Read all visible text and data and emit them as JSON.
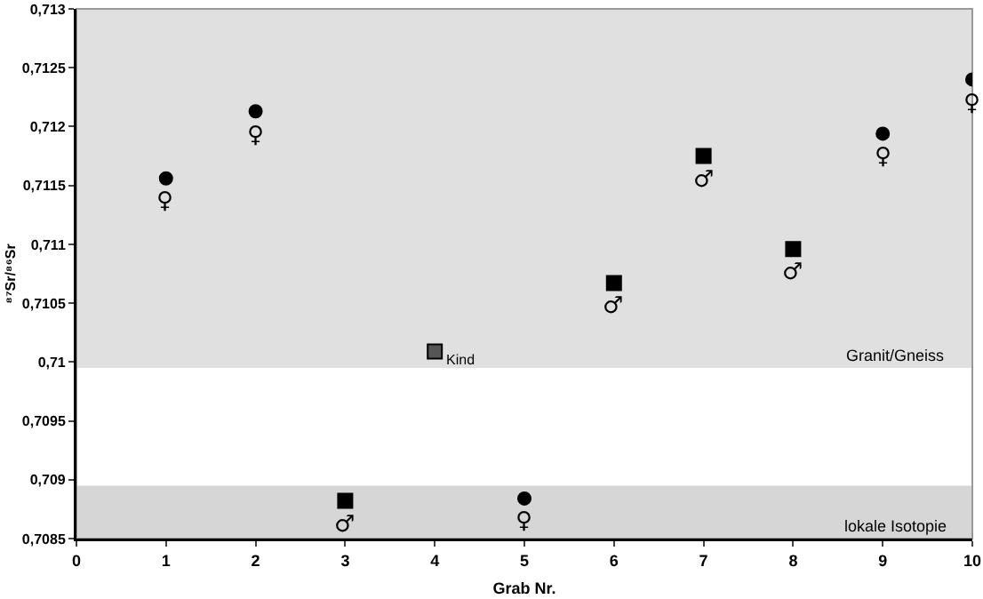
{
  "chart_data": {
    "type": "scatter",
    "xlabel": "Grab Nr.",
    "ylabel": "⁸⁷Sr/⁸⁶Sr",
    "xlim": [
      0,
      10
    ],
    "xticks": [
      0,
      1,
      2,
      3,
      4,
      5,
      6,
      7,
      8,
      9,
      10
    ],
    "ylim": [
      0.7085,
      0.713
    ],
    "yticks": [
      {
        "value": 0.7085,
        "label": "0,7085"
      },
      {
        "value": 0.709,
        "label": "0,709"
      },
      {
        "value": 0.7095,
        "label": "0,7095"
      },
      {
        "value": 0.71,
        "label": "0,71"
      },
      {
        "value": 0.7105,
        "label": "0,7105"
      },
      {
        "value": 0.711,
        "label": "0,711"
      },
      {
        "value": 0.7115,
        "label": "0,7115"
      },
      {
        "value": 0.712,
        "label": "0,712"
      },
      {
        "value": 0.7125,
        "label": "0,7125"
      },
      {
        "value": 0.713,
        "label": "0,713"
      }
    ],
    "grid": false,
    "series": [
      {
        "marker": "circle",
        "color": "#000000",
        "x": [
          1,
          2,
          5,
          9,
          10
        ],
        "values": [
          0.71156,
          0.71213,
          0.70884,
          0.71194,
          0.7124
        ]
      },
      {
        "marker": "square",
        "color": "#000000",
        "colors": [
          "#000000",
          "#555555",
          "#000000",
          "#000000",
          "#000000"
        ],
        "x": [
          3,
          4,
          6,
          7,
          8
        ],
        "values": [
          0.70882,
          0.71009,
          0.71067,
          0.71175,
          0.71096
        ]
      }
    ],
    "bands": [
      {
        "axis": "y",
        "from": 0.70995,
        "to": 0.713,
        "label": "Granit/Gneiss",
        "color": "#e0e0e0"
      },
      {
        "axis": "y",
        "from": 0.7085,
        "to": 0.70895,
        "label": "lokale Isotopie",
        "color": "#d6d6d6"
      }
    ],
    "annotations": [
      {
        "text": "♀",
        "x": 1,
        "y": 0.71156
      },
      {
        "text": "♀",
        "x": 2,
        "y": 0.71213
      },
      {
        "text": "♂",
        "x": 3,
        "y": 0.70882
      },
      {
        "text": "Kind",
        "x": 4,
        "y": 0.71009
      },
      {
        "text": "♀",
        "x": 5,
        "y": 0.70884
      },
      {
        "text": "♂",
        "x": 6,
        "y": 0.71067
      },
      {
        "text": "♂",
        "x": 7,
        "y": 0.71175
      },
      {
        "text": "♂",
        "x": 8,
        "y": 0.71096
      },
      {
        "text": "♀",
        "x": 9,
        "y": 0.71194
      },
      {
        "text": "♀",
        "x": 10,
        "y": 0.7124
      }
    ]
  }
}
